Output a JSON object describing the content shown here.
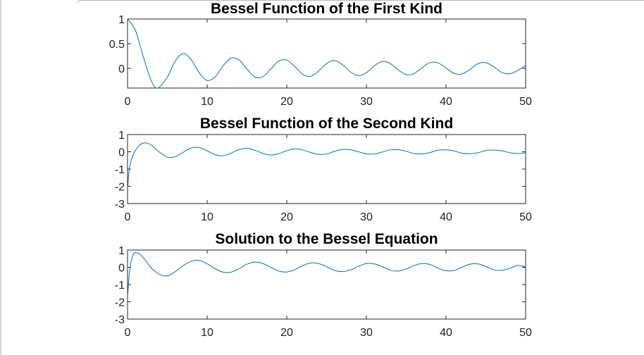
{
  "chart_data": [
    {
      "type": "line",
      "title": "Bessel Function of the First Kind",
      "xlim": [
        0,
        50
      ],
      "ylim": [
        -0.4,
        1
      ],
      "xticks": [
        "0",
        "10",
        "20",
        "30",
        "40",
        "50"
      ],
      "yticks": [
        "1",
        "0.5",
        "0"
      ],
      "ytick_values": [
        1,
        0.5,
        0
      ],
      "series": [
        {
          "color": "#0072bd",
          "x": [
            0,
            1,
            2,
            3,
            3.8,
            5,
            6,
            7,
            8,
            9,
            10,
            11,
            12,
            13,
            14,
            15,
            16,
            17,
            18,
            19,
            20,
            21,
            22,
            23,
            24,
            25,
            26,
            27,
            28,
            29,
            30,
            31,
            32,
            33,
            34,
            35,
            36,
            37,
            38,
            39,
            40,
            41,
            42,
            43,
            44,
            45,
            46,
            47,
            48,
            49,
            50
          ],
          "values": [
            1,
            0.765,
            0.224,
            -0.26,
            -0.403,
            -0.178,
            0.151,
            0.3,
            0.172,
            -0.09,
            -0.246,
            -0.171,
            0.048,
            0.207,
            0.171,
            -0.014,
            -0.175,
            -0.17,
            -0.013,
            0.147,
            0.167,
            0.037,
            -0.121,
            -0.162,
            -0.056,
            0.096,
            0.156,
            0.073,
            -0.073,
            -0.148,
            -0.086,
            0.052,
            0.139,
            0.096,
            -0.032,
            -0.128,
            -0.104,
            0.013,
            0.117,
            0.11,
            0.007,
            -0.102,
            -0.114,
            -0.024,
            0.093,
            0.115,
            0.03,
            -0.083,
            -0.111,
            -0.045,
            0.056
          ]
        }
      ]
    },
    {
      "type": "line",
      "title": "Bessel Function of the Second Kind",
      "xlim": [
        0,
        50
      ],
      "ylim": [
        -3,
        1
      ],
      "xticks": [
        "0",
        "10",
        "20",
        "30",
        "40",
        "50"
      ],
      "yticks": [
        "1",
        "0",
        "-1",
        "-2",
        "-3"
      ],
      "ytick_values": [
        1,
        0,
        -1,
        -2,
        -3
      ],
      "series": [
        {
          "color": "#0072bd",
          "x": [
            0.05,
            0.1,
            0.2,
            0.3,
            0.5,
            0.8,
            1,
            1.5,
            2,
            2.5,
            3,
            4,
            5,
            6,
            7,
            8,
            9,
            10,
            11,
            12,
            13,
            14,
            15,
            16,
            17,
            18,
            19,
            20,
            21,
            22,
            23,
            24,
            25,
            26,
            27,
            28,
            29,
            30,
            31,
            32,
            33,
            34,
            35,
            36,
            37,
            38,
            39,
            40,
            41,
            42,
            43,
            44,
            45,
            46,
            47,
            48,
            49,
            50
          ],
          "values": [
            -1.98,
            -1.53,
            -1.08,
            -0.81,
            -0.44,
            -0.087,
            0.088,
            0.382,
            0.51,
            0.498,
            0.377,
            -0.017,
            -0.309,
            -0.288,
            -0.026,
            0.223,
            0.249,
            0.056,
            -0.164,
            -0.225,
            -0.078,
            0.127,
            0.206,
            0.095,
            -0.098,
            -0.187,
            -0.106,
            0.063,
            0.171,
            0.11,
            -0.04,
            -0.15,
            -0.13,
            0.024,
            0.14,
            0.115,
            0,
            -0.118,
            -0.13,
            -0.015,
            0.11,
            0.12,
            0.03,
            -0.1,
            -0.12,
            -0.04,
            0.09,
            0.11,
            0.05,
            -0.08,
            -0.11,
            -0.06,
            0.07,
            0.1,
            0.055,
            -0.05,
            -0.1,
            -0.057
          ]
        }
      ]
    },
    {
      "type": "line",
      "title": "Solution to the Bessel Equation",
      "xlim": [
        0,
        50
      ],
      "ylim": [
        -3,
        1
      ],
      "xticks": [
        "0",
        "10",
        "20",
        "30",
        "40",
        "50"
      ],
      "yticks": [
        "1",
        "0",
        "-1",
        "-2",
        "-3"
      ],
      "ytick_values": [
        1,
        0,
        -1,
        -2,
        -3
      ],
      "series": [
        {
          "color": "#0072bd",
          "x": [
            0.05,
            0.1,
            0.2,
            0.3,
            0.5,
            0.8,
            1,
            1.5,
            2,
            2.5,
            3,
            4,
            5,
            6,
            7,
            8,
            9,
            10,
            11,
            12,
            13,
            14,
            15,
            16,
            17,
            18,
            19,
            20,
            21,
            22,
            23,
            24,
            25,
            26,
            27,
            28,
            29,
            30,
            31,
            32,
            33,
            34,
            35,
            36,
            37,
            38,
            39,
            40,
            41,
            42,
            43,
            44,
            45,
            46,
            47,
            48,
            49,
            50
          ],
          "values": [
            -1.5,
            -1.1,
            -0.5,
            -0.1,
            0.45,
            0.8,
            0.85,
            0.78,
            0.55,
            0.25,
            -0.05,
            -0.4,
            -0.5,
            -0.25,
            0.1,
            0.35,
            0.4,
            0.2,
            -0.08,
            -0.28,
            -0.28,
            -0.08,
            0.18,
            0.3,
            0.22,
            0,
            -0.22,
            -0.27,
            -0.14,
            0.1,
            0.25,
            0.22,
            0.03,
            -0.18,
            -0.25,
            -0.15,
            0.06,
            0.22,
            0.2,
            0.04,
            -0.16,
            -0.22,
            -0.1,
            0.1,
            0.22,
            0.16,
            -0.05,
            -0.2,
            -0.18,
            0,
            0.18,
            0.2,
            0.05,
            -0.14,
            -0.18,
            -0.06,
            0.1,
            0.03
          ]
        }
      ]
    }
  ]
}
